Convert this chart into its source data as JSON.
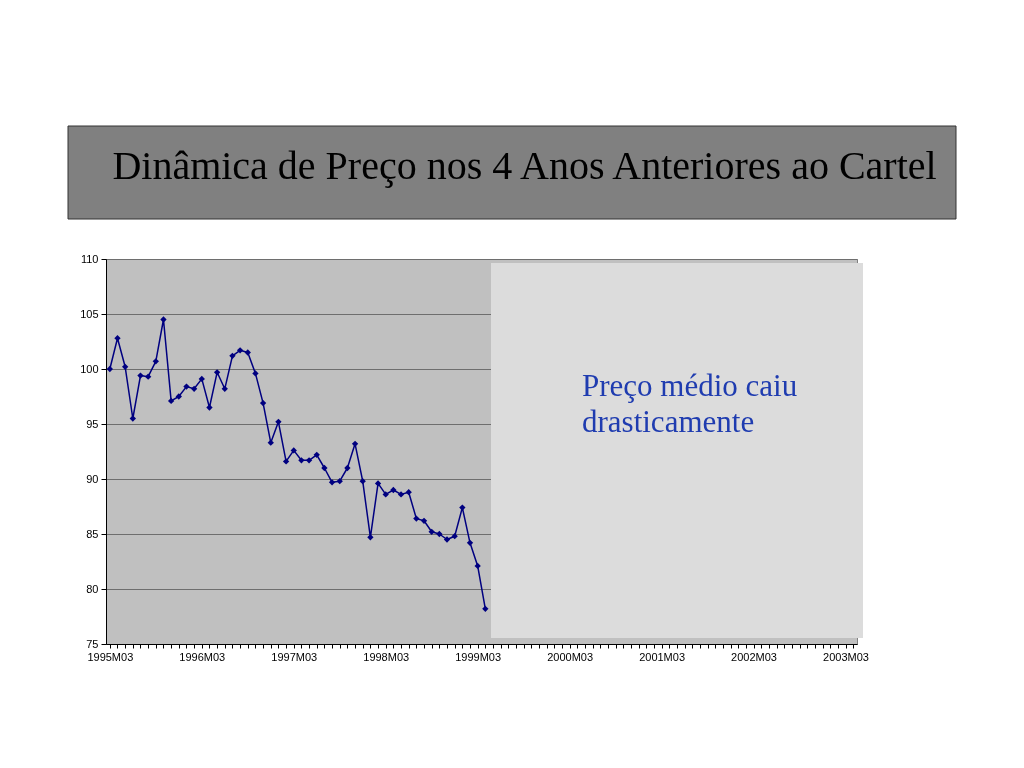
{
  "chart_data": {
    "type": "line",
    "title": "Dinâmica de Preço nos 4 Anos Anteriores ao Cartel",
    "categories": [
      "1995M03",
      null,
      null,
      null,
      null,
      null,
      null,
      null,
      null,
      null,
      null,
      null,
      "1996M03",
      null,
      null,
      null,
      null,
      null,
      null,
      null,
      null,
      null,
      null,
      null,
      "1997M03",
      null,
      null,
      null,
      null,
      null,
      null,
      null,
      null,
      null,
      null,
      null,
      "1998M03",
      null,
      null,
      null,
      null,
      null,
      null,
      null,
      null,
      null,
      null,
      null,
      "1999M03",
      null,
      null,
      null,
      null,
      null,
      null,
      null,
      null,
      null,
      null,
      null,
      "2000M03",
      null,
      null,
      null,
      null,
      null,
      null,
      null,
      null,
      null,
      null,
      null,
      "2001M03",
      null,
      null,
      null,
      null,
      null,
      null,
      null,
      null,
      null,
      null,
      null,
      "2002M03",
      null,
      null,
      null,
      null,
      null,
      null,
      null,
      null,
      null,
      null,
      null,
      "2003M03",
      null
    ],
    "series": [
      {
        "color": "#000080",
        "values": [
          100.0,
          102.8,
          100.2,
          95.5,
          99.4,
          99.3,
          100.7,
          104.5,
          97.1,
          97.5,
          98.4,
          98.2,
          99.1,
          96.5,
          99.7,
          98.2,
          101.2,
          101.7,
          101.5,
          99.6,
          96.9,
          93.3,
          95.2,
          91.6,
          92.6,
          91.7,
          91.7,
          92.2,
          91.0,
          89.7,
          89.8,
          91.0,
          93.2,
          89.8,
          84.7,
          89.6,
          88.6,
          89.0,
          88.6,
          88.8,
          86.4,
          86.2,
          85.2,
          85.0,
          84.5,
          84.8,
          87.4,
          84.2,
          82.1,
          78.2,
          null,
          null,
          null,
          null,
          null,
          null,
          null,
          null,
          null,
          null,
          null,
          null,
          null,
          null,
          null,
          null,
          null,
          null,
          null,
          null,
          null,
          null,
          null,
          null,
          null,
          null,
          null,
          null,
          null,
          null,
          null,
          null,
          null,
          null,
          null,
          null,
          null,
          null,
          null,
          null,
          null,
          null,
          null,
          null,
          null,
          null,
          null,
          null
        ]
      }
    ],
    "ylim": [
      75,
      110
    ],
    "yticks": [
      75,
      80,
      85,
      90,
      95,
      100,
      105,
      110
    ],
    "grid": "y",
    "marker": "diamond",
    "line_style": "solid",
    "annotations": [
      "Preço médio caiu drasticamente"
    ]
  }
}
